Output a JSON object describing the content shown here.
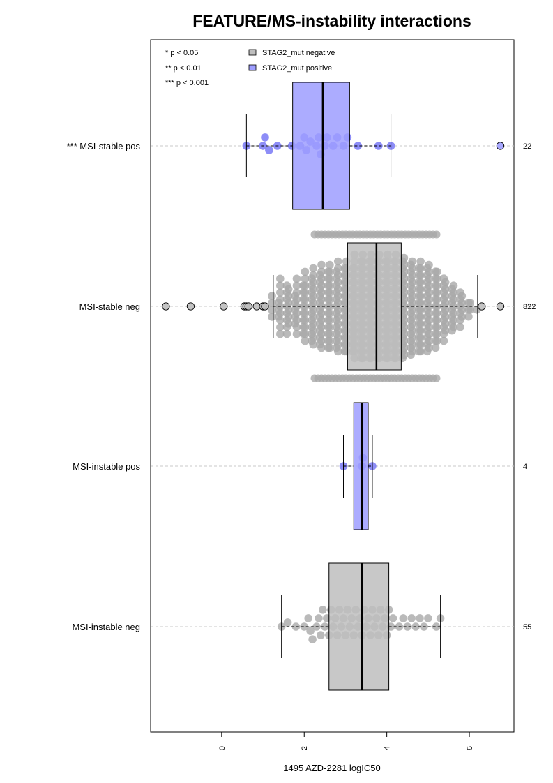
{
  "chart_data": {
    "type": "boxplot",
    "title": "FEATURE/MS-instability interactions",
    "xlabel": "1495 AZD-2281 logIC50",
    "xlim": [
      -1.72,
      7.08
    ],
    "xticks": [
      0,
      2,
      4,
      6
    ],
    "orientation": "horizontal",
    "grid": "dashed horizontal lines at each group",
    "significance_legend": [
      "* p < 0.05",
      "** p < 0.01",
      "*** p < 0.001"
    ],
    "legend": [
      {
        "label": "STAG2_mut negative",
        "color": "#bebebe"
      },
      {
        "label": "STAG2_mut positive",
        "color": "#9e9eff"
      }
    ],
    "groups": [
      {
        "label": "*** MSI-stable pos",
        "n": "22",
        "color": "#9e9eff",
        "point_color": "#7070f5",
        "whisker": [
          0.6,
          4.1
        ],
        "q1": 1.72,
        "median": 2.45,
        "q3": 3.1,
        "outliers": [
          6.75
        ],
        "points": [
          0.6,
          1.0,
          1.05,
          1.15,
          1.35,
          1.7,
          1.9,
          2.0,
          2.05,
          2.15,
          2.3,
          2.35,
          2.4,
          2.5,
          2.55,
          2.7,
          2.8,
          2.95,
          3.05,
          3.3,
          3.8,
          4.1
        ]
      },
      {
        "label": "MSI-stable neg",
        "n": "822",
        "color": "#bebebe",
        "point_color": "#a9a9a9",
        "whisker": [
          1.25,
          6.2
        ],
        "q1": 3.05,
        "median": 3.75,
        "q3": 4.35,
        "outliers": [
          -1.35,
          -0.75,
          0.05,
          0.55,
          0.6,
          0.65,
          0.85,
          1.0,
          1.05,
          6.3,
          6.75
        ],
        "density_profile": [
          [
            1.3,
            4
          ],
          [
            1.5,
            9
          ],
          [
            1.7,
            6
          ],
          [
            1.9,
            9
          ],
          [
            2.1,
            11
          ],
          [
            2.3,
            12
          ],
          [
            2.5,
            13
          ],
          [
            2.7,
            13
          ],
          [
            2.9,
            14
          ],
          [
            3.1,
            14
          ],
          [
            3.3,
            16
          ],
          [
            3.5,
            16
          ],
          [
            3.7,
            16
          ],
          [
            3.9,
            16
          ],
          [
            4.1,
            16
          ],
          [
            4.3,
            16
          ],
          [
            4.5,
            15
          ],
          [
            4.7,
            14
          ],
          [
            4.9,
            14
          ],
          [
            5.1,
            13
          ],
          [
            5.3,
            11
          ],
          [
            5.5,
            8
          ],
          [
            5.7,
            7
          ],
          [
            5.9,
            4
          ],
          [
            6.1,
            2
          ]
        ]
      },
      {
        "label": "MSI-instable pos",
        "n": "4",
        "color": "#9e9eff",
        "point_color": "#7070f5",
        "whisker": [
          2.95,
          3.65
        ],
        "q1": 3.2,
        "median": 3.4,
        "q3": 3.55,
        "outliers": [],
        "points": [
          2.95,
          3.4,
          3.42,
          3.65
        ]
      },
      {
        "label": "MSI-instable neg",
        "n": "55",
        "color": "#bebebe",
        "point_color": "#a9a9a9",
        "whisker": [
          1.45,
          5.3
        ],
        "q1": 2.6,
        "median": 3.4,
        "q3": 4.05,
        "outliers": [],
        "points": [
          1.45,
          1.6,
          1.8,
          2.0,
          2.1,
          2.15,
          2.2,
          2.3,
          2.35,
          2.4,
          2.45,
          2.5,
          2.55,
          2.6,
          2.65,
          2.7,
          2.75,
          2.8,
          2.85,
          2.9,
          2.95,
          3.0,
          3.05,
          3.1,
          3.15,
          3.2,
          3.25,
          3.3,
          3.35,
          3.4,
          3.45,
          3.5,
          3.55,
          3.6,
          3.65,
          3.7,
          3.75,
          3.8,
          3.85,
          3.9,
          3.95,
          4.0,
          4.05,
          4.1,
          4.15,
          4.3,
          4.4,
          4.5,
          4.6,
          4.7,
          4.8,
          4.9,
          5.0,
          5.2,
          5.3
        ]
      }
    ]
  }
}
